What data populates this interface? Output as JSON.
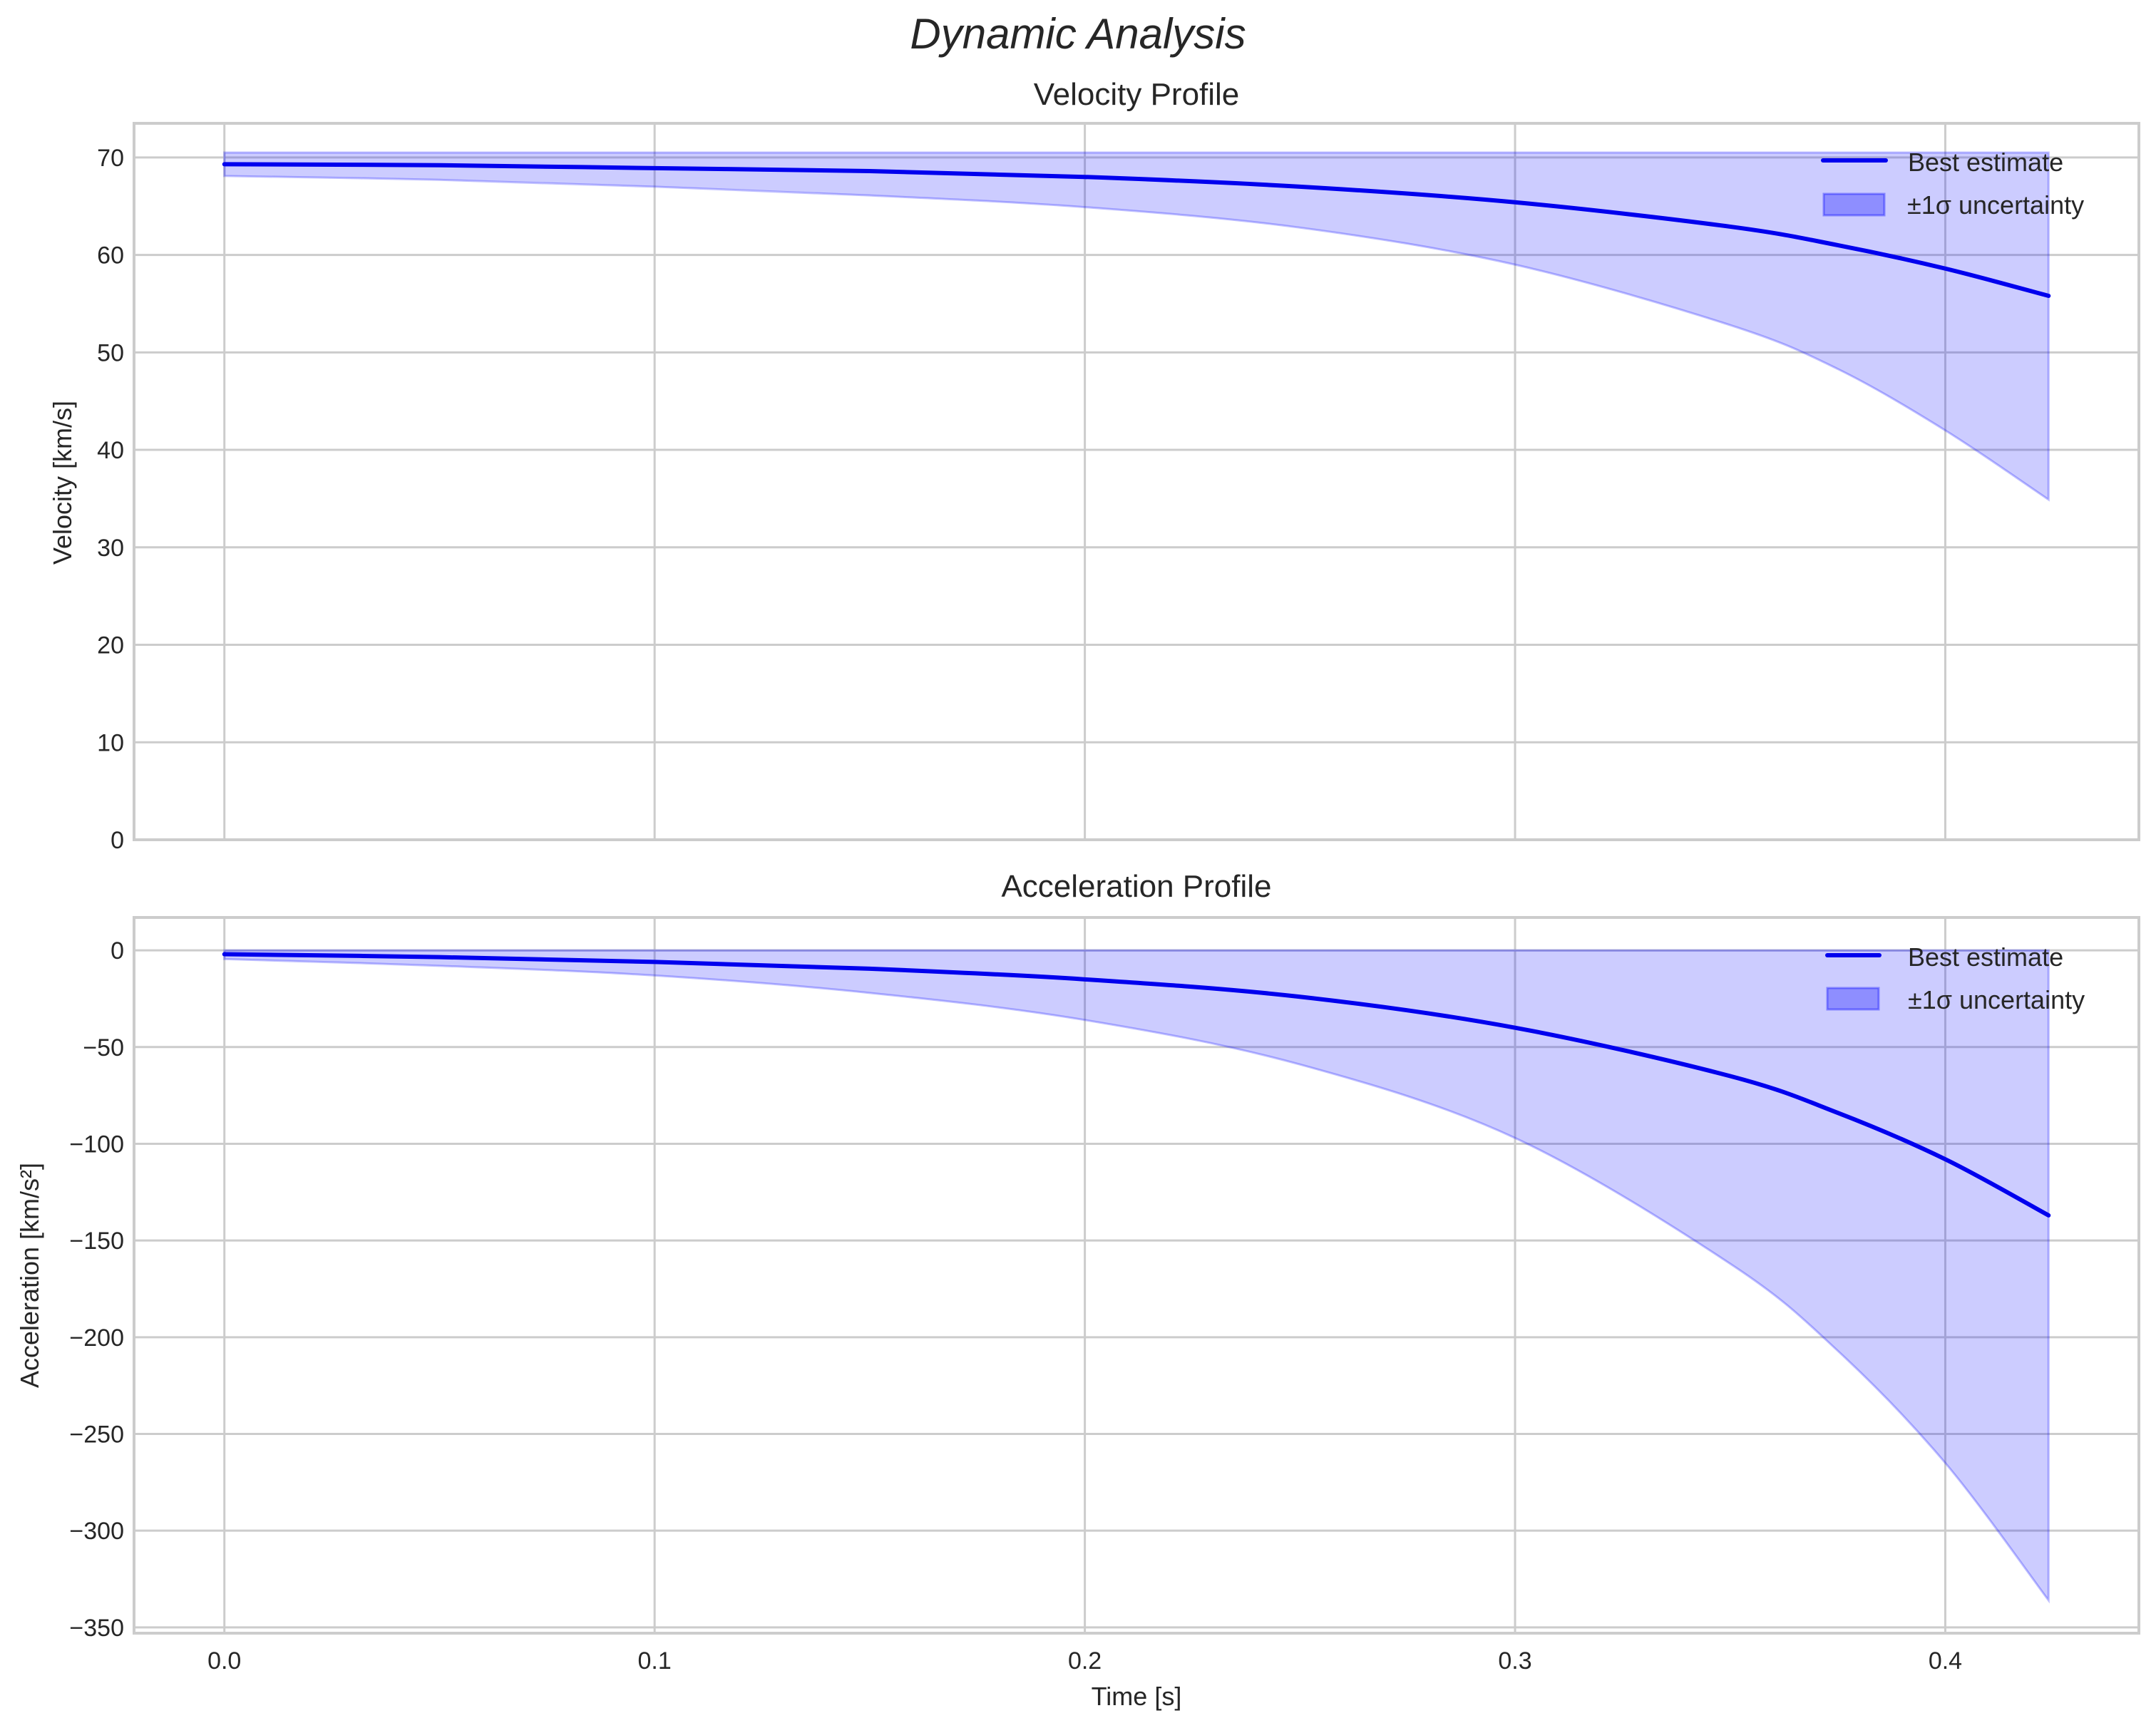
{
  "figure": {
    "suptitle": "Dynamic Analysis",
    "xlabel": "Time [s]",
    "line_color": "#0000ee",
    "band_color": "#0000ff",
    "band_opacity": 0.2,
    "grid_color": "#cccccc"
  },
  "chart_data": [
    {
      "type": "line",
      "title": "Velocity Profile",
      "xlabel": "",
      "ylabel": "Velocity [km/s]",
      "xlim": [
        -0.021,
        0.445
      ],
      "ylim": [
        0,
        73.5
      ],
      "xticks": [
        "0.0",
        "0.1",
        "0.2",
        "0.3",
        "0.4"
      ],
      "yticks": [
        "0",
        "10",
        "20",
        "30",
        "40",
        "50",
        "60",
        "70"
      ],
      "grid": true,
      "legend_position": "upper right",
      "legend": [
        "Best estimate",
        "±1σ uncertainty"
      ],
      "x": [
        0.0,
        0.05,
        0.1,
        0.15,
        0.2,
        0.25,
        0.3,
        0.35,
        0.375,
        0.4,
        0.424
      ],
      "series": [
        {
          "name": "Best estimate",
          "values": [
            69.3,
            69.2,
            68.9,
            68.6,
            68.0,
            67.0,
            65.4,
            62.9,
            61.0,
            58.6,
            55.8
          ]
        },
        {
          "name": "lower 1σ",
          "values": [
            68.1,
            67.7,
            67.0,
            66.1,
            64.9,
            62.8,
            59.0,
            52.8,
            48.3,
            42.0,
            34.9
          ]
        },
        {
          "name": "upper 1σ",
          "values": [
            70.5,
            70.5,
            70.5,
            70.5,
            70.5,
            70.5,
            70.5,
            70.5,
            70.5,
            70.5,
            70.5
          ]
        }
      ]
    },
    {
      "type": "line",
      "title": "Acceleration Profile",
      "xlabel": "Time [s]",
      "ylabel": "Acceleration [km/s²]",
      "xlim": [
        -0.021,
        0.445
      ],
      "ylim": [
        -353,
        17
      ],
      "xticks": [
        "0.0",
        "0.1",
        "0.2",
        "0.3",
        "0.4"
      ],
      "yticks": [
        "0",
        "−50",
        "−100",
        "−150",
        "−200",
        "−250",
        "−300",
        "−350"
      ],
      "grid": true,
      "legend_position": "upper right",
      "legend": [
        "Best estimate",
        "±1σ uncertainty"
      ],
      "x": [
        0.0,
        0.05,
        0.1,
        0.15,
        0.2,
        0.25,
        0.3,
        0.35,
        0.375,
        0.4,
        0.424
      ],
      "series": [
        {
          "name": "Best estimate",
          "values": [
            -2,
            -3.5,
            -6,
            -9.5,
            -15,
            -24,
            -40,
            -65,
            -84,
            -108,
            -137
          ]
        },
        {
          "name": "lower 1σ",
          "values": [
            -4.5,
            -8,
            -13,
            -22,
            -36,
            -59,
            -97,
            -162,
            -207,
            -265,
            -336
          ]
        },
        {
          "name": "upper 1σ",
          "values": [
            0,
            0,
            0,
            0,
            0,
            0,
            0,
            0,
            0,
            0,
            0
          ]
        }
      ]
    }
  ]
}
